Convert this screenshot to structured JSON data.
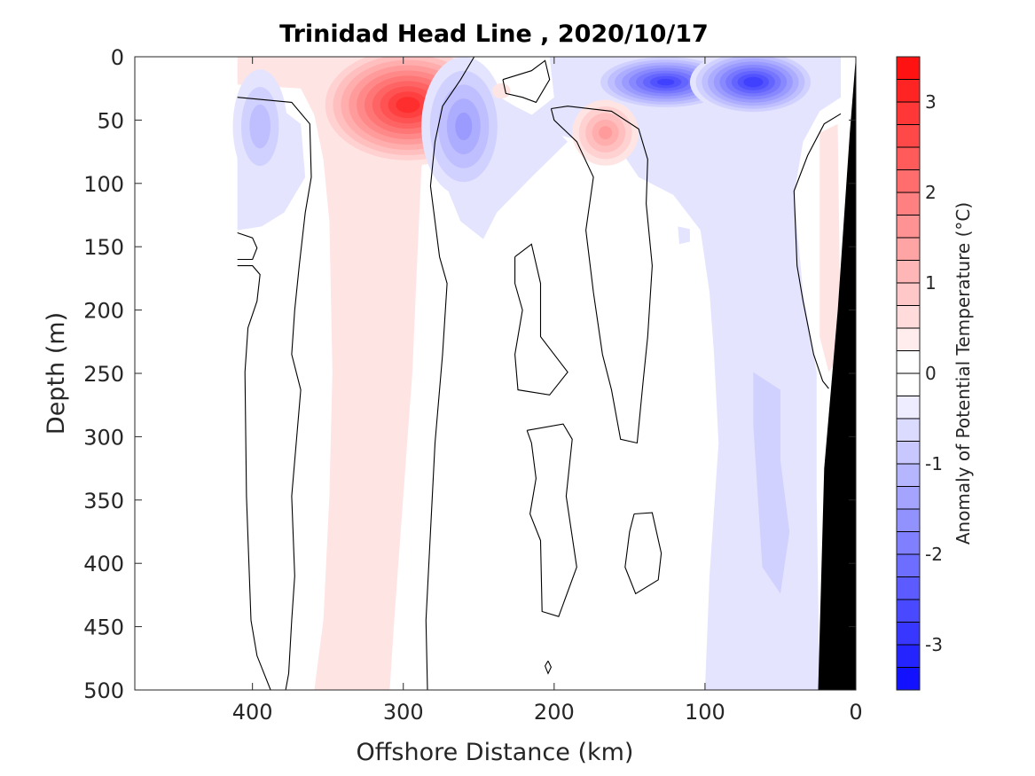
{
  "chart_data": {
    "type": "contour",
    "title": "Trinidad Head Line , 2020/10/17",
    "xlabel": "Offshore Distance (km)",
    "ylabel": "Depth (m)",
    "colorbar_label": "Anomaly of Potential Temperature (°C)",
    "xlim": [
      478,
      0
    ],
    "ylim": [
      500,
      0
    ],
    "x_reversed": true,
    "y_reversed": true,
    "xticks": [
      400,
      300,
      200,
      100,
      0
    ],
    "yticks": [
      0,
      50,
      100,
      150,
      200,
      250,
      300,
      350,
      400,
      450,
      500
    ],
    "colorbar": {
      "range": [
        -3.5,
        3.5
      ],
      "step": 0.25,
      "ticks": [
        3,
        2,
        1,
        0,
        -1,
        -2,
        -3
      ],
      "white_band": [
        -0.25,
        0.25
      ],
      "warm_color": "#ff0000",
      "cold_color": "#0000ff"
    },
    "fill_regions": [
      {
        "value": 0.375,
        "polygon": [
          [
            410,
            0
          ],
          [
            268,
            0
          ],
          [
            274,
            25
          ],
          [
            282,
            53
          ],
          [
            288,
            88
          ],
          [
            291,
            165
          ],
          [
            294,
            249
          ],
          [
            300,
            347
          ],
          [
            306,
            445
          ],
          [
            309,
            500
          ],
          [
            359,
            500
          ],
          [
            353,
            445
          ],
          [
            349,
            347
          ],
          [
            347,
            249
          ],
          [
            349,
            130
          ],
          [
            353,
            81
          ],
          [
            359,
            46
          ],
          [
            368,
            25
          ],
          [
            410,
            22
          ]
        ]
      },
      {
        "value": -0.375,
        "polygon": [
          [
            203,
            0
          ],
          [
            10,
            0
          ],
          [
            10,
            32
          ],
          [
            24,
            43
          ],
          [
            35,
            67
          ],
          [
            41,
            109
          ],
          [
            35,
            186
          ],
          [
            26,
            249
          ],
          [
            26,
            347
          ],
          [
            24,
            500
          ],
          [
            100,
            500
          ],
          [
            97,
            410
          ],
          [
            91,
            305
          ],
          [
            94,
            235
          ],
          [
            97,
            186
          ],
          [
            103,
            137
          ],
          [
            121,
            109
          ],
          [
            144,
            95
          ],
          [
            156,
            74
          ],
          [
            203,
            60
          ],
          [
            215,
            46
          ],
          [
            200,
            32
          ]
        ]
      },
      {
        "value": -0.375,
        "polygon": [
          [
            274,
            25
          ],
          [
            250,
            22
          ],
          [
            226,
            39
          ],
          [
            203,
            53
          ],
          [
            191,
            67
          ],
          [
            215,
            95
          ],
          [
            238,
            123
          ],
          [
            247,
            144
          ],
          [
            262,
            130
          ],
          [
            274,
            95
          ],
          [
            279,
            60
          ]
        ]
      },
      {
        "value": -0.375,
        "polygon": [
          [
            410,
            32
          ],
          [
            391,
            32
          ],
          [
            368,
            53
          ],
          [
            365,
            95
          ],
          [
            379,
            123
          ],
          [
            394,
            134
          ],
          [
            410,
            137
          ]
        ]
      },
      {
        "value": -0.625,
        "polygon": [
          [
            68,
            249
          ],
          [
            50,
            263
          ],
          [
            50,
            319
          ],
          [
            44,
            375
          ],
          [
            50,
            424
          ],
          [
            62,
            403
          ],
          [
            65,
            347
          ],
          [
            68,
            291
          ]
        ]
      },
      {
        "value": -0.375,
        "polygon": [
          [
            118,
            134
          ],
          [
            110,
            136
          ],
          [
            110,
            146
          ],
          [
            117,
            148
          ]
        ]
      },
      {
        "value": 0.375,
        "polygon": [
          [
            24,
            60
          ],
          [
            12,
            53
          ],
          [
            10,
            235
          ],
          [
            18,
            249
          ],
          [
            24,
            221
          ]
        ]
      }
    ],
    "extrema": [
      {
        "km": 297,
        "m": 38,
        "peak": 2.9,
        "extent_km": 60,
        "extent_m": 48
      },
      {
        "km": 166,
        "m": 60,
        "peak": 1.4,
        "extent_km": 22,
        "extent_m": 26
      },
      {
        "km": 260,
        "m": 55,
        "peak": -1.4,
        "extent_km": 28,
        "extent_m": 55
      },
      {
        "km": 395,
        "m": 55,
        "peak": -1.0,
        "extent_km": 18,
        "extent_m": 45
      },
      {
        "km": 126,
        "m": 20,
        "peak": -2.6,
        "extent_km": 48,
        "extent_m": 22
      },
      {
        "km": 68,
        "m": 20,
        "peak": -2.7,
        "extent_km": 42,
        "extent_m": 26
      },
      {
        "km": 235,
        "m": 27,
        "peak": 0.5,
        "extent_km": 6,
        "extent_m": 6
      }
    ],
    "zero_contours": [
      [
        [
          410,
          32
        ],
        [
          374,
          36
        ],
        [
          362,
          53
        ],
        [
          361,
          95
        ],
        [
          365,
          123
        ],
        [
          369,
          165
        ],
        [
          372,
          200
        ],
        [
          374,
          235
        ],
        [
          368,
          263
        ],
        [
          371,
          305
        ],
        [
          374,
          347
        ],
        [
          372,
          410
        ],
        [
          374,
          445
        ],
        [
          376,
          487
        ],
        [
          378,
          500
        ]
      ],
      [
        [
          410,
          139
        ],
        [
          400,
          143
        ],
        [
          397,
          151
        ],
        [
          400,
          160
        ],
        [
          410,
          160
        ]
      ],
      [
        [
          410,
          165
        ],
        [
          400,
          165
        ],
        [
          395,
          172
        ],
        [
          397,
          193
        ],
        [
          403,
          214
        ],
        [
          405,
          249
        ],
        [
          404,
          347
        ],
        [
          401,
          445
        ],
        [
          397,
          473
        ],
        [
          388,
          500
        ]
      ],
      [
        [
          253,
          0
        ],
        [
          262,
          18
        ],
        [
          274,
          39
        ],
        [
          279,
          67
        ],
        [
          282,
          102
        ],
        [
          276,
          158
        ],
        [
          271,
          179
        ],
        [
          274,
          235
        ],
        [
          279,
          305
        ],
        [
          282,
          375
        ],
        [
          285,
          445
        ],
        [
          284,
          500
        ]
      ],
      [
        [
          234,
          18
        ],
        [
          215,
          11
        ],
        [
          206,
          3
        ],
        [
          203,
          18
        ],
        [
          212,
          36
        ],
        [
          221,
          32
        ],
        [
          232,
          29
        ],
        [
          234,
          18
        ]
      ],
      [
        [
          202,
          41
        ],
        [
          191,
          39
        ],
        [
          162,
          43
        ],
        [
          144,
          57
        ],
        [
          138,
          81
        ],
        [
          139,
          116
        ],
        [
          135,
          165
        ],
        [
          138,
          221
        ],
        [
          141,
          256
        ],
        [
          145,
          305
        ],
        [
          156,
          302
        ],
        [
          162,
          263
        ],
        [
          168,
          235
        ],
        [
          174,
          186
        ],
        [
          179,
          137
        ],
        [
          174,
          95
        ],
        [
          185,
          67
        ],
        [
          200,
          50
        ],
        [
          202,
          41
        ]
      ],
      [
        [
          226,
          158
        ],
        [
          215,
          148
        ],
        [
          209,
          179
        ],
        [
          209,
          221
        ],
        [
          191,
          249
        ],
        [
          203,
          267
        ],
        [
          224,
          263
        ],
        [
          226,
          235
        ],
        [
          221,
          200
        ],
        [
          226,
          179
        ],
        [
          226,
          158
        ]
      ],
      [
        [
          218,
          295
        ],
        [
          194,
          290
        ],
        [
          188,
          302
        ],
        [
          192,
          347
        ],
        [
          185,
          403
        ],
        [
          197,
          442
        ],
        [
          208,
          438
        ],
        [
          209,
          382
        ],
        [
          216,
          361
        ],
        [
          212,
          333
        ],
        [
          215,
          305
        ],
        [
          218,
          295
        ]
      ],
      [
        [
          204,
          477
        ],
        [
          202,
          482
        ],
        [
          204,
          487
        ],
        [
          206,
          481
        ],
        [
          204,
          477
        ]
      ],
      [
        [
          147,
          361
        ],
        [
          135,
          360
        ],
        [
          129,
          392
        ],
        [
          131,
          413
        ],
        [
          146,
          424
        ],
        [
          153,
          403
        ],
        [
          150,
          375
        ],
        [
          147,
          361
        ]
      ],
      [
        [
          10,
          45
        ],
        [
          21,
          53
        ],
        [
          32,
          78
        ],
        [
          41,
          106
        ],
        [
          39,
          165
        ],
        [
          35,
          193
        ],
        [
          28,
          235
        ],
        [
          22,
          256
        ],
        [
          18,
          262
        ]
      ]
    ],
    "bathymetry": {
      "color": "#000000",
      "polygon": [
        [
          0,
          0
        ],
        [
          0,
          500
        ],
        [
          25,
          500
        ],
        [
          21,
          325
        ],
        [
          12,
          200
        ],
        [
          4,
          60
        ]
      ]
    }
  }
}
